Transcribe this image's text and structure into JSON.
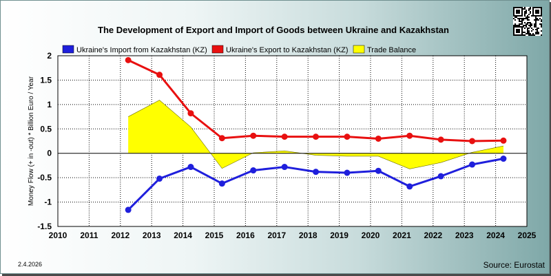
{
  "chart_data": {
    "type": "line",
    "title": "The Development of Export and Import of Goods between Ukraine and Kazakhstan",
    "ylabel": "Money Flow (+ in -out) * Billion Euro / Year",
    "xlim": [
      2010,
      2025
    ],
    "ylim": [
      -1.5,
      2
    ],
    "x_ticks": [
      "2010",
      "2011",
      "2012",
      "2013",
      "2014",
      "2015",
      "2016",
      "2017",
      "2018",
      "2019",
      "2020",
      "2021",
      "2022",
      "2023",
      "2024",
      "2025"
    ],
    "y_ticks": [
      "2",
      "1.5",
      "1",
      "0.5",
      "0",
      "-0.5",
      "-1",
      "-1.5"
    ],
    "grid": true,
    "legend_placement": "top",
    "x": [
      2012.25,
      2013.25,
      2014.25,
      2015.25,
      2016.25,
      2017.25,
      2018.25,
      2019.25,
      2020.25,
      2021.25,
      2022.25,
      2023.25,
      2024.25
    ],
    "series": [
      {
        "name": "Ukraine's Import from Kazakhstan (KZ)",
        "color": "#1f1fdc",
        "values": [
          -1.16,
          -0.52,
          -0.28,
          -0.62,
          -0.35,
          -0.28,
          -0.38,
          -0.4,
          -0.36,
          -0.68,
          -0.47,
          -0.23,
          -0.11
        ]
      },
      {
        "name": "Ukraine's Export to Kazakhstan (KZ)",
        "color": "#e81010",
        "values": [
          1.91,
          1.61,
          0.82,
          0.31,
          0.36,
          0.34,
          0.34,
          0.34,
          0.3,
          0.36,
          0.28,
          0.25,
          0.26
        ]
      },
      {
        "name": "Trade Balance",
        "color": "#ffff00",
        "type": "area",
        "values": [
          0.75,
          1.09,
          0.54,
          -0.31,
          0.01,
          0.05,
          -0.04,
          -0.06,
          -0.06,
          -0.32,
          -0.19,
          0.02,
          0.15
        ]
      }
    ]
  },
  "footer": {
    "date": "2.4.2026",
    "source": "Source: Eurostat"
  },
  "icons": {
    "qr": "qr-code-icon"
  }
}
